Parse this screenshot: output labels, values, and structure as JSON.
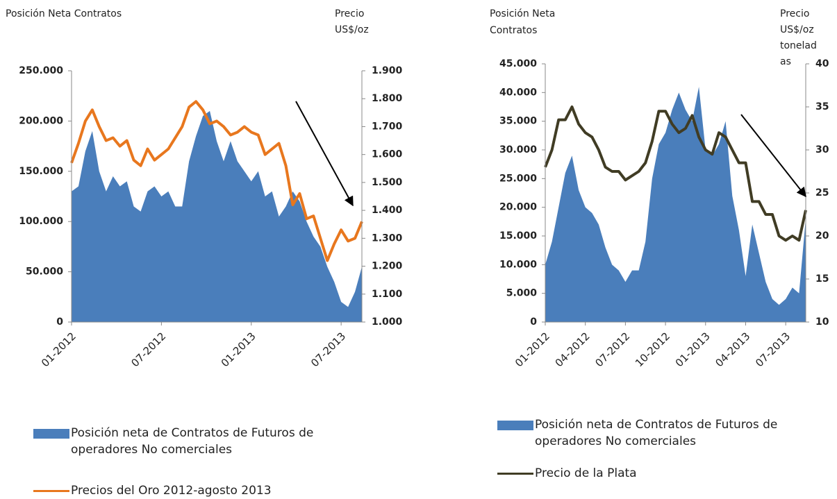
{
  "chart_data": [
    {
      "type": "area-line",
      "y_label": [
        "Posición Neta Contratos"
      ],
      "y2_label": [
        "Precio",
        "US$/oz"
      ],
      "categories": [
        "01-2012",
        null,
        null,
        null,
        null,
        null,
        null,
        null,
        null,
        null,
        null,
        null,
        null,
        "07-2012",
        null,
        null,
        null,
        null,
        null,
        null,
        null,
        null,
        null,
        null,
        null,
        null,
        "01-2013",
        null,
        null,
        null,
        null,
        null,
        null,
        null,
        null,
        null,
        null,
        null,
        null,
        "07-2013",
        null,
        null,
        null
      ],
      "series": [
        {
          "name": "Posición neta de Contratos de Futuros  de operadores No comerciales",
          "kind": "area",
          "color": "#4a7ebb",
          "values": [
            130000,
            135000,
            170000,
            190000,
            150000,
            130000,
            145000,
            135000,
            140000,
            115000,
            110000,
            130000,
            135000,
            125000,
            130000,
            115000,
            115000,
            160000,
            185000,
            205000,
            210000,
            180000,
            160000,
            180000,
            160000,
            150000,
            140000,
            150000,
            125000,
            130000,
            105000,
            115000,
            130000,
            120000,
            100000,
            85000,
            75000,
            55000,
            40000,
            20000,
            15000,
            30000,
            55000
          ]
        },
        {
          "name": "Precios del Oro 2012-agosto 2013",
          "kind": "line",
          "axis": "y2",
          "color": "#e8771e",
          "values": [
            1570,
            1640,
            1720,
            1760,
            1700,
            1650,
            1660,
            1630,
            1650,
            1580,
            1560,
            1620,
            1580,
            1600,
            1620,
            1660,
            1700,
            1770,
            1790,
            1760,
            1710,
            1720,
            1700,
            1670,
            1680,
            1700,
            1680,
            1670,
            1600,
            1620,
            1640,
            1560,
            1420,
            1460,
            1370,
            1380,
            1300,
            1220,
            1280,
            1330,
            1290,
            1300,
            1360
          ]
        }
      ],
      "ylim": [
        0,
        250000
      ],
      "yticks": [
        0,
        {
          "value": 50000,
          "label": "50.000"
        },
        {
          "value": 100000,
          "label": "100.000"
        },
        {
          "value": 150000,
          "label": "150.000"
        },
        {
          "value": 200000,
          "label": "200.000"
        },
        {
          "value": 250000,
          "label": "250.000"
        }
      ],
      "y2lim": [
        1000,
        1900
      ],
      "y2ticks": [
        {
          "value": 1000,
          "label": "1.000"
        },
        {
          "value": 1100,
          "label": "1.100"
        },
        {
          "value": 1200,
          "label": "1.200"
        },
        {
          "value": 1300,
          "label": "1.300"
        },
        {
          "value": 1400,
          "label": "1.400"
        },
        {
          "value": 1500,
          "label": "1.500"
        },
        {
          "value": 1600,
          "label": "1.600"
        },
        {
          "value": 1700,
          "label": "1.700"
        },
        {
          "value": 1800,
          "label": "1.800"
        },
        {
          "value": 1900,
          "label": "1.900"
        }
      ]
    },
    {
      "type": "area-line",
      "y_label": [
        "Posición Neta",
        "Contratos"
      ],
      "y2_label": [
        "Precio",
        "US$/oz",
        "tonelad",
        "as"
      ],
      "categories": [
        "01-2012",
        null,
        null,
        null,
        null,
        null,
        "04-2012",
        null,
        null,
        null,
        null,
        null,
        "07-2012",
        null,
        null,
        null,
        null,
        null,
        "10-2012",
        null,
        null,
        null,
        null,
        null,
        "01-2013",
        null,
        null,
        null,
        null,
        null,
        "04-2013",
        null,
        null,
        null,
        null,
        null,
        "07-2013",
        null,
        null,
        null
      ],
      "series": [
        {
          "name": "Posición neta de Contratos de Futuros de operadores No comerciales",
          "kind": "area",
          "color": "#4a7ebb",
          "values": [
            10000,
            14000,
            20000,
            26000,
            29000,
            23000,
            20000,
            19000,
            17000,
            13000,
            10000,
            9000,
            7000,
            9000,
            9000,
            14000,
            25000,
            31000,
            33000,
            37000,
            40000,
            37000,
            35000,
            41000,
            30000,
            29000,
            31000,
            35000,
            22000,
            16000,
            8000,
            17000,
            12000,
            7000,
            4000,
            3000,
            4000,
            6000,
            5000,
            18000
          ]
        },
        {
          "name": "Precio de la Plata",
          "kind": "line",
          "axis": "y2",
          "color": "#403c24",
          "values": [
            28,
            30,
            33.5,
            33.5,
            35,
            33,
            32,
            31.5,
            30,
            28,
            27.5,
            27.5,
            26.5,
            27,
            27.5,
            28.5,
            31,
            34.5,
            34.5,
            33,
            32,
            32.5,
            34,
            31.5,
            30,
            29.5,
            32,
            31.5,
            30,
            28.5,
            28.5,
            24,
            24,
            22.5,
            22.5,
            20,
            19.5,
            20,
            19.5,
            23
          ]
        }
      ],
      "ylim": [
        0,
        45000
      ],
      "yticks": [
        0,
        {
          "value": 5000,
          "label": "5.000"
        },
        {
          "value": 10000,
          "label": "10.000"
        },
        {
          "value": 15000,
          "label": "15.000"
        },
        {
          "value": 20000,
          "label": "20.000"
        },
        {
          "value": 25000,
          "label": "25.000"
        },
        {
          "value": 30000,
          "label": "30.000"
        },
        {
          "value": 35000,
          "label": "35.000"
        },
        {
          "value": 40000,
          "label": "40.000"
        },
        {
          "value": 45000,
          "label": "45.000"
        }
      ],
      "y2lim": [
        10,
        40
      ],
      "y2ticks": [
        10,
        15,
        20,
        25,
        30,
        35,
        40
      ]
    }
  ]
}
